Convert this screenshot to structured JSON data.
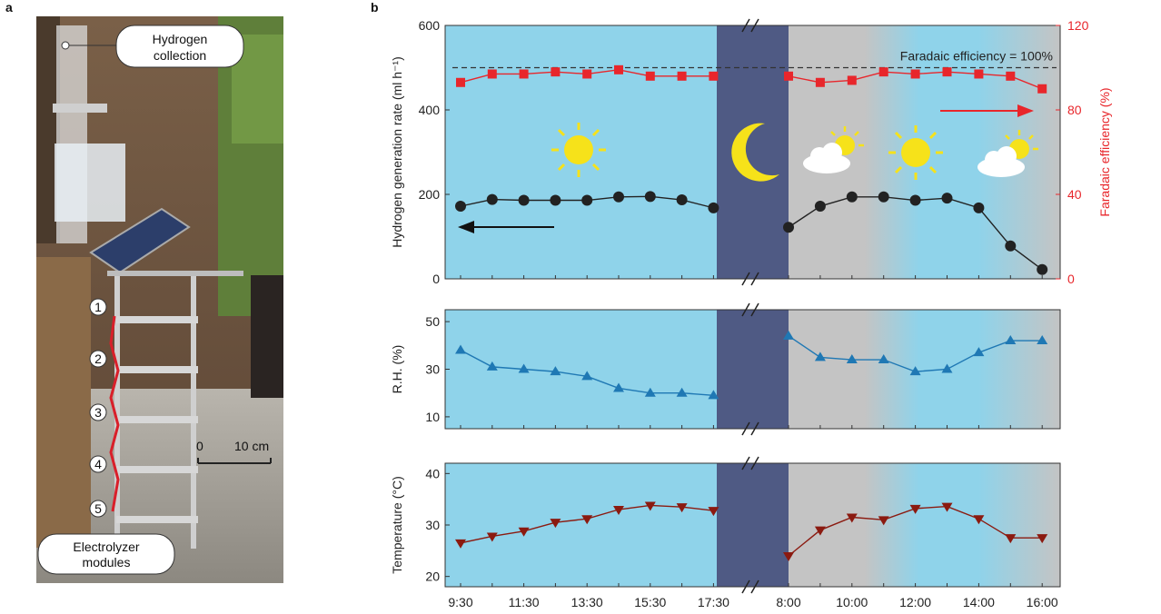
{
  "panel_a_label": "a",
  "panel_b_label": "b",
  "photo": {
    "callout_top_line1": "Hydrogen",
    "callout_top_line2": "collection",
    "callout_bottom_line1": "Electrolyzer",
    "callout_bottom_line2": "modules",
    "module_numbers": [
      "1",
      "2",
      "3",
      "4",
      "5"
    ],
    "scale_zero": "0",
    "scale_length": "10 cm"
  },
  "chart_data": [
    {
      "type": "line",
      "title": "",
      "ylabel": "Hydrogen generation rate (ml h⁻¹)",
      "ylabel_right": "Faradaic efficiency (%)",
      "ylim": [
        0,
        600
      ],
      "ylim_right": [
        0,
        120
      ],
      "yticks": [
        0,
        200,
        400,
        600
      ],
      "yticks_right": [
        0,
        40,
        80,
        120
      ],
      "reference_label": "Faradaic efficiency = 100%",
      "reference_value_right": 100,
      "series": [
        {
          "day1": [
            {
              "t": "9:30",
              "v": 172
            },
            {
              "t": "10:30",
              "v": 188
            },
            {
              "t": "11:30",
              "v": 186
            },
            {
              "t": "12:30",
              "v": 186
            },
            {
              "t": "13:30",
              "v": 186
            },
            {
              "t": "14:30",
              "v": 194
            },
            {
              "t": "15:30",
              "v": 195
            },
            {
              "t": "16:30",
              "v": 187
            },
            {
              "t": "17:30",
              "v": 168
            }
          ],
          "day2": [
            {
              "t": "8:00",
              "v": 122
            },
            {
              "t": "9:00",
              "v": 172
            },
            {
              "t": "10:00",
              "v": 194
            },
            {
              "t": "11:00",
              "v": 194
            },
            {
              "t": "12:00",
              "v": 186
            },
            {
              "t": "13:00",
              "v": 191
            },
            {
              "t": "14:00",
              "v": 168
            },
            {
              "t": "15:00",
              "v": 78
            },
            {
              "t": "16:00",
              "v": 22
            }
          ],
          "color": "#222222",
          "marker": "circle",
          "axis": "left"
        },
        {
          "day1": [
            {
              "t": "9:30",
              "v": 93
            },
            {
              "t": "10:30",
              "v": 97
            },
            {
              "t": "11:30",
              "v": 97
            },
            {
              "t": "12:30",
              "v": 98
            },
            {
              "t": "13:30",
              "v": 97
            },
            {
              "t": "14:30",
              "v": 99
            },
            {
              "t": "15:30",
              "v": 96
            },
            {
              "t": "16:30",
              "v": 96
            },
            {
              "t": "17:30",
              "v": 96
            }
          ],
          "day2": [
            {
              "t": "8:00",
              "v": 96
            },
            {
              "t": "9:00",
              "v": 93
            },
            {
              "t": "10:00",
              "v": 94
            },
            {
              "t": "11:00",
              "v": 98
            },
            {
              "t": "12:00",
              "v": 97
            },
            {
              "t": "13:00",
              "v": 98
            },
            {
              "t": "14:00",
              "v": 97
            },
            {
              "t": "15:00",
              "v": 96
            },
            {
              "t": "16:00",
              "v": 90
            }
          ],
          "color": "#e8262b",
          "marker": "square",
          "axis": "right"
        }
      ]
    },
    {
      "type": "line",
      "title": "",
      "ylabel": "R.H. (%)",
      "ylim": [
        5,
        55
      ],
      "yticks": [
        10,
        30,
        50
      ],
      "series": [
        {
          "day1": [
            {
              "t": "9:30",
              "v": 38
            },
            {
              "t": "10:30",
              "v": 31
            },
            {
              "t": "11:30",
              "v": 30
            },
            {
              "t": "12:30",
              "v": 29
            },
            {
              "t": "13:30",
              "v": 27
            },
            {
              "t": "14:30",
              "v": 22
            },
            {
              "t": "15:30",
              "v": 20
            },
            {
              "t": "16:30",
              "v": 20
            },
            {
              "t": "17:30",
              "v": 19
            }
          ],
          "day2": [
            {
              "t": "8:00",
              "v": 44
            },
            {
              "t": "9:00",
              "v": 35
            },
            {
              "t": "10:00",
              "v": 34
            },
            {
              "t": "11:00",
              "v": 34
            },
            {
              "t": "12:00",
              "v": 29
            },
            {
              "t": "13:00",
              "v": 30
            },
            {
              "t": "14:00",
              "v": 37
            },
            {
              "t": "15:00",
              "v": 42
            },
            {
              "t": "16:00",
              "v": 42
            }
          ],
          "color": "#1f78b4",
          "marker": "triangle-up"
        }
      ]
    },
    {
      "type": "line",
      "title": "",
      "ylabel": "Temperature (°C)",
      "ylim": [
        18,
        42
      ],
      "yticks": [
        20,
        30,
        40
      ],
      "series": [
        {
          "day1": [
            {
              "t": "9:30",
              "v": 26.5
            },
            {
              "t": "10:30",
              "v": 27.8
            },
            {
              "t": "11:30",
              "v": 28.8
            },
            {
              "t": "12:30",
              "v": 30.5
            },
            {
              "t": "13:30",
              "v": 31.2
            },
            {
              "t": "14:30",
              "v": 33
            },
            {
              "t": "15:30",
              "v": 33.8
            },
            {
              "t": "16:30",
              "v": 33.5
            },
            {
              "t": "17:30",
              "v": 32.8
            }
          ],
          "day2": [
            {
              "t": "8:00",
              "v": 24
            },
            {
              "t": "9:00",
              "v": 29
            },
            {
              "t": "10:00",
              "v": 31.5
            },
            {
              "t": "11:00",
              "v": 31
            },
            {
              "t": "12:00",
              "v": 33.2
            },
            {
              "t": "13:00",
              "v": 33.6
            },
            {
              "t": "14:00",
              "v": 31.2
            },
            {
              "t": "15:00",
              "v": 27.5
            },
            {
              "t": "16:00",
              "v": 27.5
            }
          ],
          "color": "#8b1a10",
          "marker": "triangle-down"
        }
      ]
    }
  ],
  "x_tick_labels_day1": [
    "9:30",
    "11:30",
    "13:30",
    "15:30",
    "17:30"
  ],
  "x_tick_labels_day2": [
    "8:00",
    "10:00",
    "12:00",
    "14:00",
    "16:00"
  ],
  "colors": {
    "day_bg": "#8fd3ea",
    "night_bg": "#4f5a84",
    "grey_bg": "#c4c4c4",
    "sun": "#f6e21a",
    "moon": "#f6e21a"
  },
  "icons": [
    "sun-icon",
    "moon-icon",
    "cloud-sun-icon",
    "left-arrow-icon",
    "right-arrow-icon"
  ]
}
